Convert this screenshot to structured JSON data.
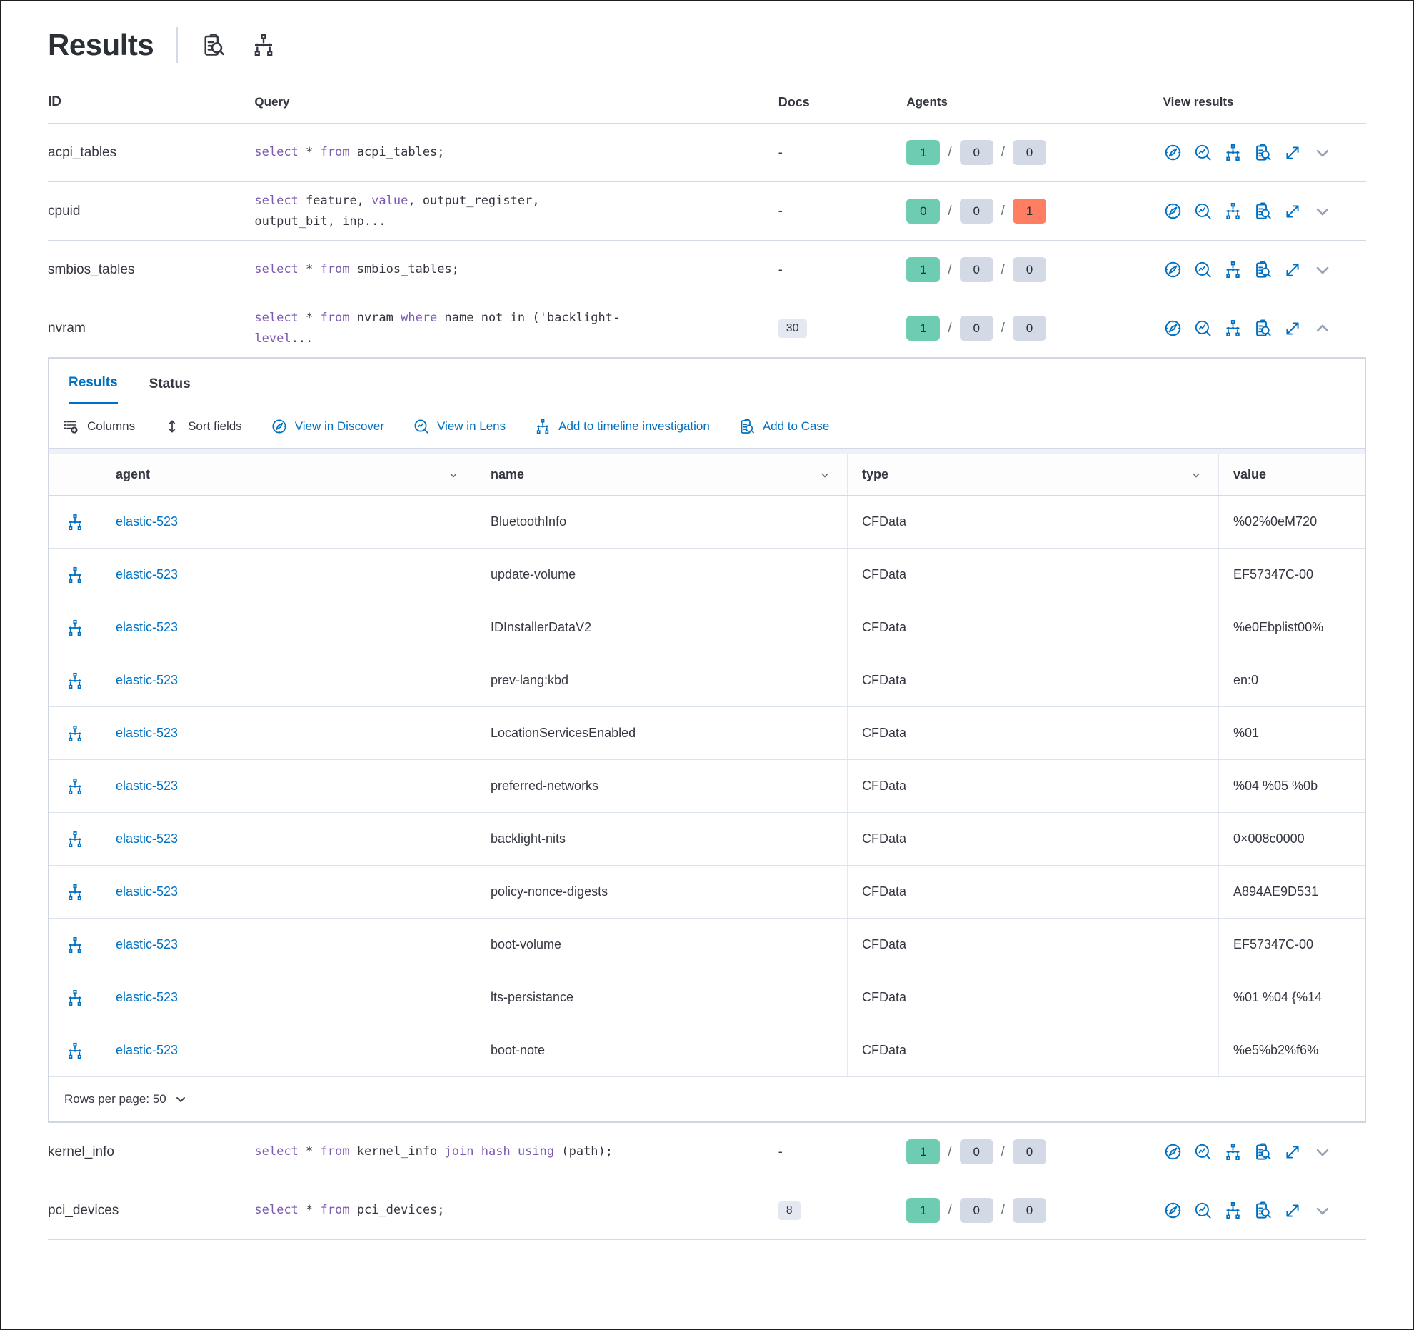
{
  "title": "Results",
  "chars": {
    "slash": "/"
  },
  "top_table": {
    "headers": {
      "id": "ID",
      "query": "Query",
      "docs": "Docs",
      "agents": "Agents",
      "view": "View results"
    },
    "rows": [
      {
        "id": "acpi_tables",
        "query": [
          {
            "t": "select",
            "k": true
          },
          {
            "t": " * ",
            "k": false
          },
          {
            "t": "from",
            "k": true
          },
          {
            "t": " acpi_tables;",
            "k": false
          }
        ],
        "docs": "-",
        "agents": [
          "1",
          "0",
          "0"
        ]
      },
      {
        "id": "cpuid",
        "query": [
          {
            "t": "select",
            "k": true
          },
          {
            "t": " feature, ",
            "k": false
          },
          {
            "t": "value",
            "k": true
          },
          {
            "t": ", output_register, output_bit, inp...",
            "k": false
          }
        ],
        "docs": "-",
        "agents": [
          "0",
          "0",
          "1"
        ]
      },
      {
        "id": "smbios_tables",
        "query": [
          {
            "t": "select",
            "k": true
          },
          {
            "t": " * ",
            "k": false
          },
          {
            "t": "from",
            "k": true
          },
          {
            "t": " smbios_tables;",
            "k": false
          }
        ],
        "docs": "-",
        "agents": [
          "1",
          "0",
          "0"
        ]
      },
      {
        "id": "nvram",
        "query": [
          {
            "t": "select",
            "k": true
          },
          {
            "t": " * ",
            "k": false
          },
          {
            "t": "from",
            "k": true
          },
          {
            "t": " nvram ",
            "k": false
          },
          {
            "t": "where",
            "k": true
          },
          {
            "t": " name not in ('backlight-",
            "k": false
          },
          {
            "t": "level",
            "k": true
          },
          {
            "t": "...",
            "k": false
          }
        ],
        "docs": "30",
        "agents": [
          "1",
          "0",
          "0"
        ]
      },
      {
        "id": "kernel_info",
        "query": [
          {
            "t": "select",
            "k": true
          },
          {
            "t": " * ",
            "k": false
          },
          {
            "t": "from",
            "k": true
          },
          {
            "t": " kernel_info ",
            "k": false
          },
          {
            "t": "join",
            "k": true
          },
          {
            "t": " ",
            "k": false
          },
          {
            "t": "hash",
            "k": true
          },
          {
            "t": " ",
            "k": false
          },
          {
            "t": "using",
            "k": true
          },
          {
            "t": " (path);",
            "k": false
          }
        ],
        "docs": "-",
        "agents": [
          "1",
          "0",
          "0"
        ]
      },
      {
        "id": "pci_devices",
        "query": [
          {
            "t": "select",
            "k": true
          },
          {
            "t": " * ",
            "k": false
          },
          {
            "t": "from",
            "k": true
          },
          {
            "t": " pci_devices;",
            "k": false
          }
        ],
        "docs": "8",
        "agents": [
          "1",
          "0",
          "0"
        ]
      }
    ]
  },
  "expanded_panel": {
    "tabs": [
      {
        "label": "Results"
      },
      {
        "label": "Status"
      }
    ],
    "toolbar": {
      "columns": "Columns",
      "sort_fields": "Sort fields",
      "view_in_discover": "View in Discover",
      "view_in_lens": "View in Lens",
      "add_to_timeline": "Add to timeline investigation",
      "add_to_case": "Add to Case"
    },
    "grid": {
      "columns": {
        "agent": "agent",
        "name": "name",
        "type": "type",
        "value": "value"
      },
      "rows": [
        {
          "agent": "elastic-523",
          "name": "BluetoothInfo",
          "type": "CFData",
          "value": "%02%0eM720"
        },
        {
          "agent": "elastic-523",
          "name": "update-volume",
          "type": "CFData",
          "value": "EF57347C-00"
        },
        {
          "agent": "elastic-523",
          "name": "IDInstallerDataV2",
          "type": "CFData",
          "value": "%e0Ebplist00%"
        },
        {
          "agent": "elastic-523",
          "name": "prev-lang:kbd",
          "type": "CFData",
          "value": "en:0"
        },
        {
          "agent": "elastic-523",
          "name": "LocationServicesEnabled",
          "type": "CFData",
          "value": "%01"
        },
        {
          "agent": "elastic-523",
          "name": "preferred-networks",
          "type": "CFData",
          "value": "%04 %05 %0b"
        },
        {
          "agent": "elastic-523",
          "name": "backlight-nits",
          "type": "CFData",
          "value": "0×008c0000"
        },
        {
          "agent": "elastic-523",
          "name": "policy-nonce-digests",
          "type": "CFData",
          "value": "A894AE9D531"
        },
        {
          "agent": "elastic-523",
          "name": "boot-volume",
          "type": "CFData",
          "value": "EF57347C-00"
        },
        {
          "agent": "elastic-523",
          "name": "lts-persistance",
          "type": "CFData",
          "value": "%01 %04 {%14"
        },
        {
          "agent": "elastic-523",
          "name": "boot-note",
          "type": "CFData",
          "value": "%e5%b2%f6%"
        }
      ],
      "rows_per_page": "Rows per page: 50"
    }
  },
  "colors": {
    "primary_blue": "#0071c2",
    "keyword_purple": "#7c5ab0",
    "badge_green": "#6dccb1",
    "badge_gray": "#d3dae6",
    "badge_red": "#ff7e62"
  }
}
